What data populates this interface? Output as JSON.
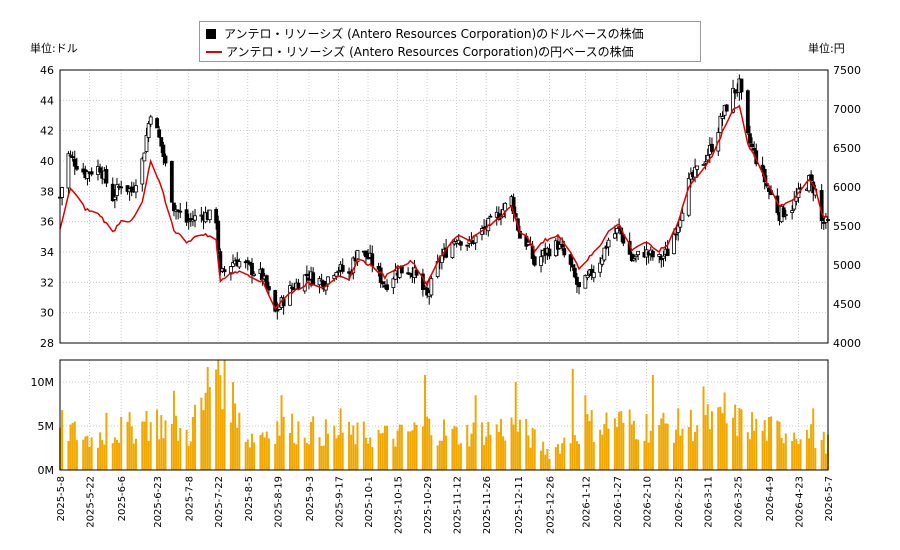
{
  "legend": {
    "usd_label": "アンテロ・リソーシズ (Antero Resources Corporation)のドルベースの株価",
    "jpy_label": "アンテロ・リソーシズ (Antero Resources Corporation)の円ベースの株価"
  },
  "units": {
    "left": "単位:ドル",
    "right": "単位:円"
  },
  "colors": {
    "candle": "#000000",
    "jpy_line": "#e00000",
    "volume": "#f0a800",
    "axis": "#000000",
    "grid": "#cccccc"
  },
  "chart_data": [
    {
      "type": "candlestick",
      "series": [
        {
          "name": "アンテロ・リソーシズ (Antero Resources Corporation)のドルベースの株価",
          "axis": "left",
          "keypoints": [
            [
              "2025-05-08",
              37.6
            ],
            [
              "2025-05-12",
              40.4
            ],
            [
              "2025-05-20",
              39.2
            ],
            [
              "2025-05-27",
              39.6
            ],
            [
              "2025-06-02",
              37.6
            ],
            [
              "2025-06-06",
              38.5
            ],
            [
              "2025-06-11",
              38.0
            ],
            [
              "2025-06-16",
              40.0
            ],
            [
              "2025-06-20",
              43.3
            ],
            [
              "2025-06-25",
              41.0
            ],
            [
              "2025-07-01",
              37.0
            ],
            [
              "2025-07-07",
              36.0
            ],
            [
              "2025-07-15",
              36.5
            ],
            [
              "2025-07-21",
              36.2
            ],
            [
              "2025-07-23",
              32.4
            ],
            [
              "2025-07-30",
              33.5
            ],
            [
              "2025-08-05",
              33.0
            ],
            [
              "2025-08-12",
              32.4
            ],
            [
              "2025-08-18",
              30.0
            ],
            [
              "2025-08-25",
              31.5
            ],
            [
              "2025-09-02",
              32.5
            ],
            [
              "2025-09-10",
              32.0
            ],
            [
              "2025-09-16",
              33.0
            ],
            [
              "2025-09-22",
              32.5
            ],
            [
              "2025-09-26",
              34.2
            ],
            [
              "2025-10-02",
              33.5
            ],
            [
              "2025-10-09",
              31.8
            ],
            [
              "2025-10-15",
              32.8
            ],
            [
              "2025-10-22",
              32.8
            ],
            [
              "2025-10-29",
              31.0
            ],
            [
              "2025-11-04",
              33.5
            ],
            [
              "2025-11-12",
              35.0
            ],
            [
              "2025-11-18",
              34.5
            ],
            [
              "2025-11-25",
              35.5
            ],
            [
              "2025-12-02",
              36.5
            ],
            [
              "2025-12-08",
              37.5
            ],
            [
              "2025-12-12",
              35.0
            ],
            [
              "2025-12-16",
              34.5
            ],
            [
              "2025-12-19",
              33.2
            ],
            [
              "2025-12-24",
              34.0
            ],
            [
              "2025-12-30",
              34.5
            ],
            [
              "2026-01-05",
              33.0
            ],
            [
              "2026-01-09",
              31.5
            ],
            [
              "2026-01-13",
              32.2
            ],
            [
              "2026-01-19",
              33.5
            ],
            [
              "2026-01-23",
              34.8
            ],
            [
              "2026-01-28",
              35.5
            ],
            [
              "2026-02-03",
              33.5
            ],
            [
              "2026-02-09",
              34.0
            ],
            [
              "2026-02-16",
              33.5
            ],
            [
              "2026-02-20",
              34.0
            ],
            [
              "2026-02-25",
              36.0
            ],
            [
              "2026-03-02",
              38.5
            ],
            [
              "2026-03-09",
              40.0
            ],
            [
              "2026-03-13",
              41.0
            ],
            [
              "2026-03-18",
              43.0
            ],
            [
              "2026-03-23",
              44.5
            ],
            [
              "2026-03-26",
              45.0
            ],
            [
              "2026-03-30",
              41.5
            ],
            [
              "2026-04-02",
              40.5
            ],
            [
              "2026-04-09",
              38.0
            ],
            [
              "2026-04-14",
              36.5
            ],
            [
              "2026-04-20",
              37.0
            ],
            [
              "2026-04-24",
              38.0
            ],
            [
              "2026-04-28",
              38.7
            ],
            [
              "2026-05-01",
              38.0
            ],
            [
              "2026-05-04",
              36.0
            ],
            [
              "2026-05-07",
              35.8
            ]
          ]
        },
        {
          "name": "アンテロ・リソーシズ (Antero Resources Corporation)の円ベースの株価",
          "axis": "right",
          "keypoints": [
            [
              "2025-05-08",
              5450
            ],
            [
              "2025-05-13",
              5990
            ],
            [
              "2025-05-20",
              5720
            ],
            [
              "2025-05-27",
              5640
            ],
            [
              "2025-06-02",
              5420
            ],
            [
              "2025-06-06",
              5580
            ],
            [
              "2025-06-11",
              5560
            ],
            [
              "2025-06-16",
              5800
            ],
            [
              "2025-06-20",
              6330
            ],
            [
              "2025-06-25",
              5990
            ],
            [
              "2025-07-01",
              5450
            ],
            [
              "2025-07-07",
              5300
            ],
            [
              "2025-07-15",
              5400
            ],
            [
              "2025-07-21",
              5320
            ],
            [
              "2025-07-23",
              4800
            ],
            [
              "2025-07-30",
              4920
            ],
            [
              "2025-08-05",
              4880
            ],
            [
              "2025-08-12",
              4790
            ],
            [
              "2025-08-18",
              4450
            ],
            [
              "2025-08-25",
              4640
            ],
            [
              "2025-09-02",
              4760
            ],
            [
              "2025-09-10",
              4720
            ],
            [
              "2025-09-16",
              4850
            ],
            [
              "2025-09-22",
              4800
            ],
            [
              "2025-09-26",
              5080
            ],
            [
              "2025-10-02",
              5000
            ],
            [
              "2025-10-09",
              4850
            ],
            [
              "2025-10-15",
              4980
            ],
            [
              "2025-10-22",
              5050
            ],
            [
              "2025-10-29",
              4750
            ],
            [
              "2025-11-04",
              5100
            ],
            [
              "2025-11-12",
              5380
            ],
            [
              "2025-11-18",
              5320
            ],
            [
              "2025-11-25",
              5450
            ],
            [
              "2025-12-02",
              5600
            ],
            [
              "2025-12-08",
              5780
            ],
            [
              "2025-12-12",
              5400
            ],
            [
              "2025-12-16",
              5350
            ],
            [
              "2025-12-19",
              5180
            ],
            [
              "2025-12-24",
              5320
            ],
            [
              "2025-12-30",
              5380
            ],
            [
              "2026-01-05",
              5180
            ],
            [
              "2026-01-09",
              4960
            ],
            [
              "2026-01-13",
              5070
            ],
            [
              "2026-01-19",
              5250
            ],
            [
              "2026-01-23",
              5450
            ],
            [
              "2026-01-28",
              5520
            ],
            [
              "2026-02-03",
              5200
            ],
            [
              "2026-02-09",
              5290
            ],
            [
              "2026-02-16",
              5180
            ],
            [
              "2026-02-20",
              5260
            ],
            [
              "2026-02-25",
              5560
            ],
            [
              "2026-03-02",
              6000
            ],
            [
              "2026-03-09",
              6250
            ],
            [
              "2026-03-13",
              6380
            ],
            [
              "2026-03-18",
              6700
            ],
            [
              "2026-03-23",
              7000
            ],
            [
              "2026-03-26",
              7050
            ],
            [
              "2026-03-30",
              6550
            ],
            [
              "2026-04-02",
              6420
            ],
            [
              "2026-04-09",
              6000
            ],
            [
              "2026-04-14",
              5750
            ],
            [
              "2026-04-20",
              5830
            ],
            [
              "2026-04-24",
              5960
            ],
            [
              "2026-04-28",
              6100
            ],
            [
              "2026-05-01",
              6000
            ],
            [
              "2026-05-04",
              5650
            ],
            [
              "2026-05-07",
              5600
            ]
          ]
        }
      ],
      "left_axis": {
        "range": [
          28,
          46
        ],
        "ticks": [
          "28",
          "30",
          "32",
          "34",
          "36",
          "38",
          "40",
          "42",
          "44",
          "46"
        ]
      },
      "right_axis": {
        "range": [
          4000,
          7500
        ],
        "ticks": [
          "4000",
          "4500",
          "5000",
          "5500",
          "6000",
          "6500",
          "7000",
          "7500"
        ]
      },
      "x_range": [
        "2025-05-08",
        "2026-05-07"
      ],
      "x_ticks": [
        "2025-5-8",
        "2025-5-22",
        "2025-6-6",
        "2025-6-23",
        "2025-7-8",
        "2025-7-22",
        "2025-8-5",
        "2025-8-19",
        "2025-9-3",
        "2025-9-17",
        "2025-10-1",
        "2025-10-15",
        "2025-10-29",
        "2025-11-12",
        "2025-11-26",
        "2025-12-11",
        "2025-12-26",
        "2026-1-12",
        "2026-1-27",
        "2026-2-10",
        "2026-2-25",
        "2026-3-11",
        "2026-3-25",
        "2026-4-9",
        "2026-4-23",
        "2026-5-7"
      ],
      "grid": true
    },
    {
      "type": "bar",
      "series": [
        {
          "name": "volume",
          "keypoints": [
            [
              "2025-05-08",
              5.0
            ],
            [
              "2025-05-22",
              3.5
            ],
            [
              "2025-06-06",
              4.5
            ],
            [
              "2025-06-23",
              5.5
            ],
            [
              "2025-07-08",
              4.0
            ],
            [
              "2025-07-22",
              12.5
            ],
            [
              "2025-08-05",
              3.5
            ],
            [
              "2025-08-19",
              5.0
            ],
            [
              "2025-09-03",
              4.5
            ],
            [
              "2025-09-17",
              4.0
            ],
            [
              "2025-10-01",
              4.0
            ],
            [
              "2025-10-15",
              3.8
            ],
            [
              "2025-10-29",
              5.0
            ],
            [
              "2025-11-12",
              4.0
            ],
            [
              "2025-11-26",
              4.5
            ],
            [
              "2025-12-11",
              5.0
            ],
            [
              "2025-12-26",
              2.0
            ],
            [
              "2026-01-12",
              5.0
            ],
            [
              "2026-01-27",
              5.5
            ],
            [
              "2026-02-10",
              5.0
            ],
            [
              "2026-02-25",
              5.0
            ],
            [
              "2026-03-11",
              5.5
            ],
            [
              "2026-03-25",
              5.5
            ],
            [
              "2026-04-09",
              4.5
            ],
            [
              "2026-04-23",
              4.5
            ],
            [
              "2026-05-07",
              3.0
            ]
          ],
          "spikes": [
            [
              "2025-05-30",
              6.5
            ],
            [
              "2025-06-18",
              6.7
            ],
            [
              "2025-07-01",
              9.0
            ],
            [
              "2025-07-15",
              6.8
            ],
            [
              "2025-07-22",
              12.5
            ],
            [
              "2025-08-01",
              6.5
            ],
            [
              "2025-08-21",
              8.5
            ],
            [
              "2025-09-18",
              7.0
            ],
            [
              "2025-10-28",
              10.8
            ],
            [
              "2025-11-21",
              8.5
            ],
            [
              "2025-12-10",
              10.0
            ],
            [
              "2026-01-06",
              11.5
            ],
            [
              "2026-01-12",
              8.5
            ],
            [
              "2026-02-13",
              10.8
            ],
            [
              "2026-03-09",
              9.5
            ],
            [
              "2026-03-19",
              8.8
            ],
            [
              "2026-04-30",
              7.0
            ]
          ]
        }
      ],
      "y_axis": {
        "range": [
          0,
          12.5
        ],
        "ticks": [
          "0M",
          "5M",
          "10M"
        ]
      },
      "grid": true
    }
  ]
}
